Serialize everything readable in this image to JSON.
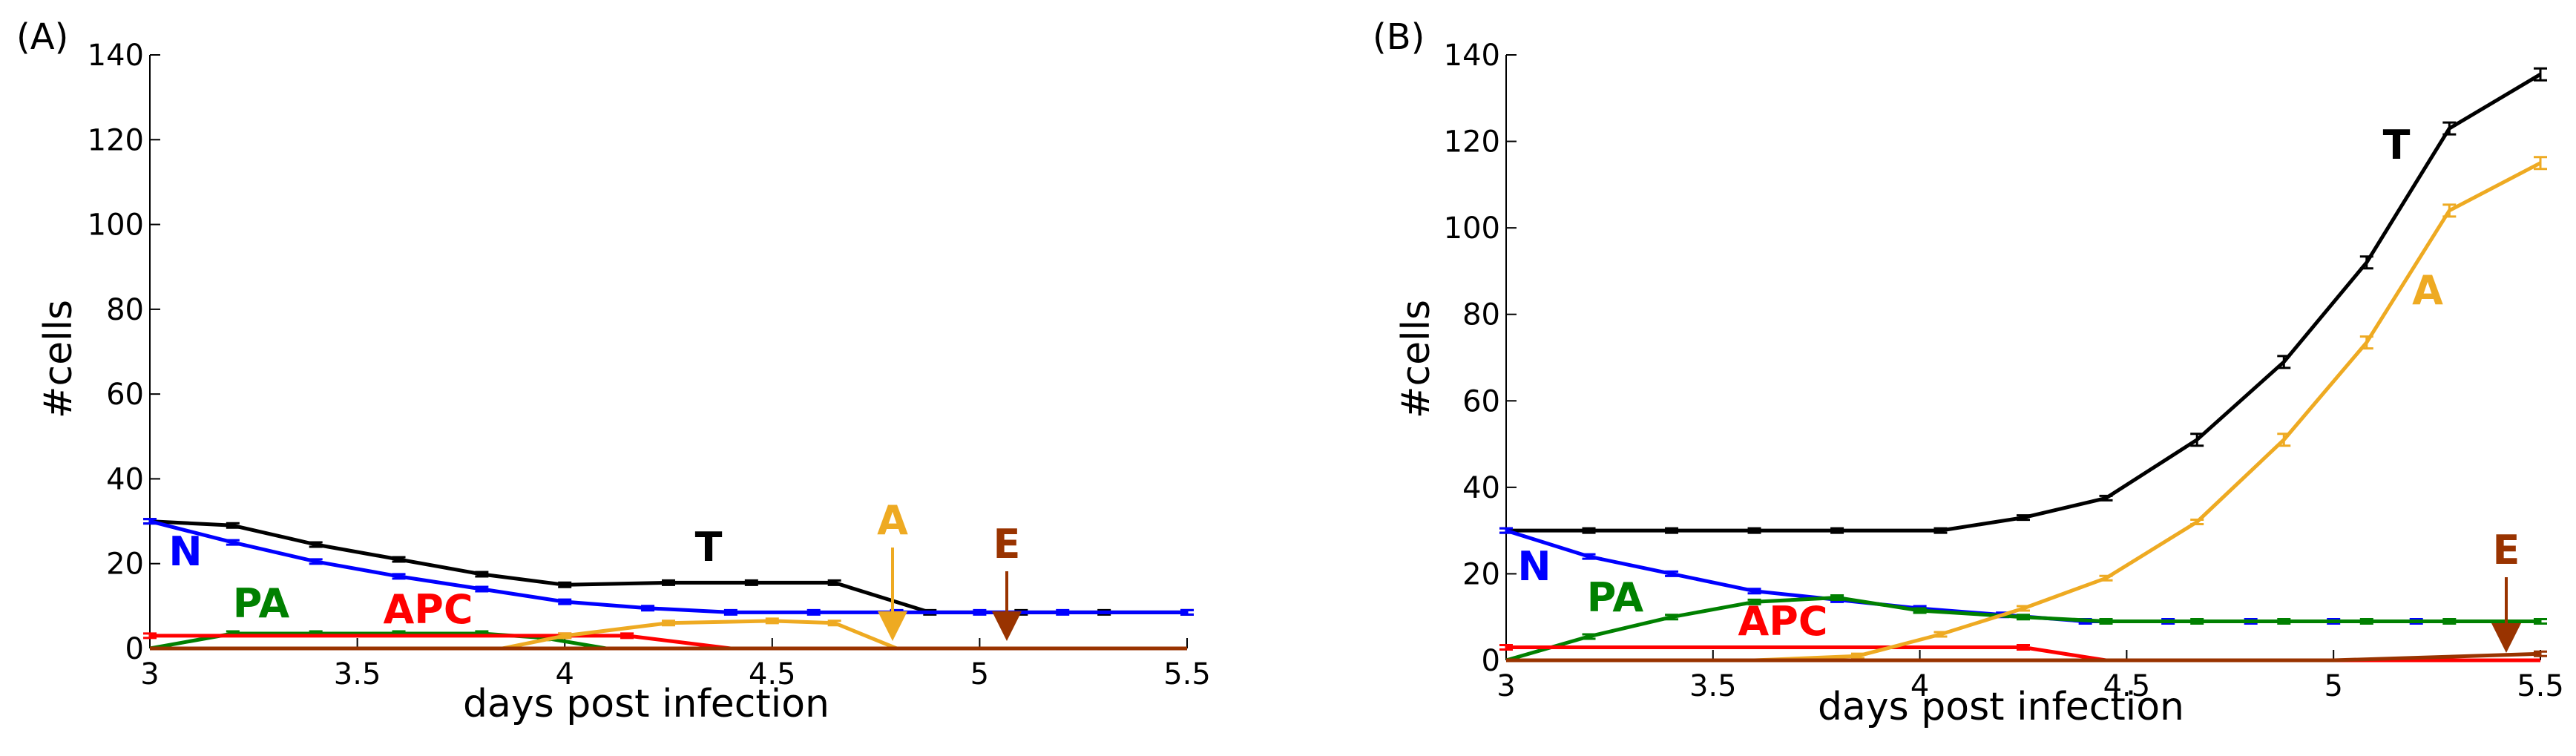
{
  "chart_data": [
    {
      "type": "line",
      "panel_label": "(A)",
      "xlabel": "days post infection",
      "ylabel": "#cells",
      "xlim": [
        3,
        5.5
      ],
      "ylim": [
        0,
        140
      ],
      "xticks": [
        "3",
        "3.5",
        "4",
        "4.5",
        "5",
        "5.5"
      ],
      "yticks": [
        "0",
        "20",
        "40",
        "60",
        "80",
        "100",
        "120",
        "140"
      ],
      "grid": false,
      "legend": "inline labels",
      "series": [
        {
          "name": "T",
          "color": "#000000",
          "x": [
            3.0,
            3.2,
            3.4,
            3.6,
            3.8,
            4.0,
            4.25,
            4.45,
            4.65,
            4.88,
            5.1,
            5.3,
            5.5
          ],
          "y": [
            30,
            29,
            24.5,
            21,
            17.5,
            15,
            15.5,
            15.5,
            15.5,
            8.5,
            8.5,
            8.5,
            8.5
          ]
        },
        {
          "name": "N",
          "color": "#0000ff",
          "x": [
            3.0,
            3.2,
            3.4,
            3.6,
            3.8,
            4.0,
            4.2,
            4.4,
            4.6,
            4.8,
            5.0,
            5.2,
            5.5
          ],
          "y": [
            30,
            25,
            20.5,
            17,
            14,
            11,
            9.5,
            8.5,
            8.5,
            8.5,
            8.5,
            8.5,
            8.5
          ]
        },
        {
          "name": "PA",
          "color": "#008000",
          "x": [
            3.0,
            3.2,
            3.4,
            3.6,
            3.8,
            3.95,
            4.1,
            5.5
          ],
          "y": [
            0,
            3.5,
            3.5,
            3.5,
            3.5,
            2.5,
            0,
            0
          ]
        },
        {
          "name": "APC",
          "color": "#ff0000",
          "x": [
            3.0,
            4.0,
            4.15,
            4.4,
            5.5
          ],
          "y": [
            3,
            3,
            3,
            0,
            0
          ]
        },
        {
          "name": "A",
          "color": "#eeaa22",
          "x": [
            3.0,
            3.85,
            4.0,
            4.25,
            4.5,
            4.65,
            4.8,
            5.5
          ],
          "y": [
            0,
            0,
            3,
            6,
            6.5,
            6,
            0,
            0
          ]
        },
        {
          "name": "E",
          "color": "#993300",
          "x": [
            3.0,
            5.5
          ],
          "y": [
            0,
            0
          ]
        }
      ]
    },
    {
      "type": "line",
      "panel_label": "(B)",
      "xlabel": "days post infection",
      "ylabel": "#cells",
      "xlim": [
        3,
        5.5
      ],
      "ylim": [
        0,
        140
      ],
      "xticks": [
        "3",
        "3.5",
        "4",
        "4.5",
        "5",
        "5.5"
      ],
      "yticks": [
        "0",
        "20",
        "40",
        "60",
        "80",
        "100",
        "120",
        "140"
      ],
      "grid": false,
      "legend": "inline labels",
      "series": [
        {
          "name": "T",
          "color": "#000000",
          "x": [
            3.0,
            3.2,
            3.4,
            3.6,
            3.8,
            4.05,
            4.25,
            4.45,
            4.67,
            4.88,
            5.08,
            5.28,
            5.5
          ],
          "y": [
            30,
            30,
            30,
            30,
            30,
            30,
            33,
            37.5,
            51,
            69,
            92,
            123,
            135.5
          ]
        },
        {
          "name": "N",
          "color": "#0000ff",
          "x": [
            3.0,
            3.2,
            3.4,
            3.6,
            3.8,
            4.0,
            4.2,
            4.4,
            4.6,
            4.8,
            5.0,
            5.2,
            5.5
          ],
          "y": [
            30,
            24,
            20,
            16,
            14,
            12,
            10.5,
            9,
            9,
            9,
            9,
            9,
            9
          ]
        },
        {
          "name": "PA",
          "color": "#008000",
          "x": [
            3.0,
            3.2,
            3.4,
            3.6,
            3.8,
            4.0,
            4.25,
            4.45,
            4.67,
            4.88,
            5.08,
            5.28,
            5.5
          ],
          "y": [
            0,
            5.5,
            10,
            13.5,
            14.5,
            11.5,
            10,
            9,
            9,
            9,
            9,
            9,
            9
          ]
        },
        {
          "name": "APC",
          "color": "#ff0000",
          "x": [
            3.0,
            4.25,
            4.45,
            5.5
          ],
          "y": [
            3,
            3,
            0,
            0
          ]
        },
        {
          "name": "A",
          "color": "#eeaa22",
          "x": [
            3.0,
            3.6,
            3.85,
            4.05,
            4.25,
            4.45,
            4.67,
            4.88,
            5.08,
            5.28,
            5.5
          ],
          "y": [
            0,
            0,
            1,
            6,
            12,
            19,
            32,
            51,
            73.5,
            104,
            115
          ]
        },
        {
          "name": "E",
          "color": "#993300",
          "x": [
            3.0,
            5.0,
            5.5
          ],
          "y": [
            0,
            0,
            1.5
          ]
        }
      ]
    }
  ]
}
